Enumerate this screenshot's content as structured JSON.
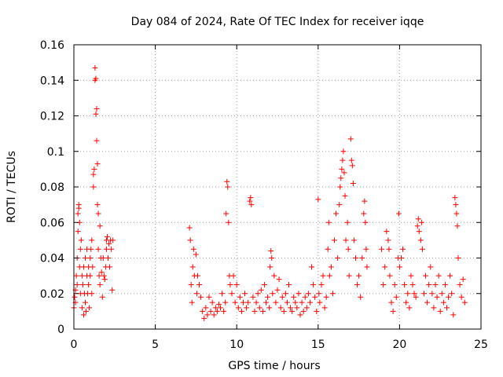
{
  "chart_data": {
    "type": "scatter",
    "title": "Day 084 of 2024, Rate Of TEC Index for receiver iqqe",
    "xlabel": "GPS time / hours",
    "ylabel": "ROTI / TECUs",
    "xlim": [
      0,
      25
    ],
    "ylim": [
      0,
      0.16
    ],
    "grid": true,
    "marker": "plus",
    "color": "#ff0000",
    "x_ticks": [
      {
        "value": 0,
        "label": "0"
      },
      {
        "value": 5,
        "label": "5"
      },
      {
        "value": 10,
        "label": "10"
      },
      {
        "value": 15,
        "label": "15"
      },
      {
        "value": 20,
        "label": "20"
      },
      {
        "value": 25,
        "label": "25"
      }
    ],
    "y_ticks": [
      {
        "value": 0,
        "label": "0"
      },
      {
        "value": 0.02,
        "label": "0.02"
      },
      {
        "value": 0.04,
        "label": "0.04"
      },
      {
        "value": 0.06,
        "label": "0.06"
      },
      {
        "value": 0.08,
        "label": "0.08"
      },
      {
        "value": 0.1,
        "label": "0.1"
      },
      {
        "value": 0.12,
        "label": "0.12"
      },
      {
        "value": 0.14,
        "label": "0.14"
      },
      {
        "value": 0.16,
        "label": "0.16"
      }
    ],
    "series": [
      {
        "name": "ROTI",
        "points": [
          [
            0.0,
            0.012
          ],
          [
            0.05,
            0.018
          ],
          [
            0.1,
            0.022
          ],
          [
            0.1,
            0.015
          ],
          [
            0.15,
            0.03
          ],
          [
            0.2,
            0.025
          ],
          [
            0.2,
            0.04
          ],
          [
            0.25,
            0.055
          ],
          [
            0.25,
            0.065
          ],
          [
            0.3,
            0.07
          ],
          [
            0.3,
            0.068
          ],
          [
            0.35,
            0.06
          ],
          [
            0.35,
            0.035
          ],
          [
            0.4,
            0.045
          ],
          [
            0.4,
            0.02
          ],
          [
            0.45,
            0.05
          ],
          [
            0.5,
            0.03
          ],
          [
            0.5,
            0.012
          ],
          [
            0.55,
            0.025
          ],
          [
            0.6,
            0.035
          ],
          [
            0.6,
            0.008
          ],
          [
            0.65,
            0.02
          ],
          [
            0.7,
            0.04
          ],
          [
            0.7,
            0.015
          ],
          [
            0.75,
            0.01
          ],
          [
            0.8,
            0.03
          ],
          [
            0.8,
            0.045
          ],
          [
            0.85,
            0.02
          ],
          [
            0.9,
            0.035
          ],
          [
            0.9,
            0.025
          ],
          [
            0.95,
            0.012
          ],
          [
            1.0,
            0.04
          ],
          [
            1.0,
            0.03
          ],
          [
            1.05,
            0.045
          ],
          [
            1.1,
            0.02
          ],
          [
            1.1,
            0.05
          ],
          [
            1.15,
            0.035
          ],
          [
            1.2,
            0.08
          ],
          [
            1.2,
            0.087
          ],
          [
            1.25,
            0.09
          ],
          [
            1.3,
            0.147
          ],
          [
            1.3,
            0.14
          ],
          [
            1.35,
            0.141
          ],
          [
            1.35,
            0.121
          ],
          [
            1.4,
            0.124
          ],
          [
            1.4,
            0.106
          ],
          [
            1.45,
            0.093
          ],
          [
            1.45,
            0.07
          ],
          [
            1.5,
            0.065
          ],
          [
            1.5,
            0.045
          ],
          [
            1.55,
            0.03
          ],
          [
            1.6,
            0.058
          ],
          [
            1.6,
            0.025
          ],
          [
            1.65,
            0.04
          ],
          [
            1.7,
            0.032
          ],
          [
            1.75,
            0.018
          ],
          [
            1.8,
            0.04
          ],
          [
            1.85,
            0.03
          ],
          [
            1.9,
            0.028
          ],
          [
            1.95,
            0.035
          ],
          [
            2.0,
            0.045
          ],
          [
            2.0,
            0.05
          ],
          [
            2.05,
            0.052
          ],
          [
            2.1,
            0.04
          ],
          [
            2.15,
            0.048
          ],
          [
            2.2,
            0.035
          ],
          [
            2.25,
            0.05
          ],
          [
            2.3,
            0.045
          ],
          [
            2.35,
            0.022
          ],
          [
            2.4,
            0.05
          ],
          [
            7.1,
            0.057
          ],
          [
            7.15,
            0.05
          ],
          [
            7.2,
            0.025
          ],
          [
            7.25,
            0.015
          ],
          [
            7.3,
            0.035
          ],
          [
            7.35,
            0.045
          ],
          [
            7.4,
            0.03
          ],
          [
            7.5,
            0.042
          ],
          [
            7.55,
            0.02
          ],
          [
            7.6,
            0.03
          ],
          [
            7.7,
            0.025
          ],
          [
            7.8,
            0.018
          ],
          [
            7.9,
            0.01
          ],
          [
            8.0,
            0.006
          ],
          [
            8.1,
            0.012
          ],
          [
            8.2,
            0.008
          ],
          [
            8.3,
            0.018
          ],
          [
            8.4,
            0.01
          ],
          [
            8.5,
            0.015
          ],
          [
            8.6,
            0.008
          ],
          [
            8.7,
            0.012
          ],
          [
            8.8,
            0.01
          ],
          [
            8.9,
            0.014
          ],
          [
            9.0,
            0.012
          ],
          [
            9.1,
            0.02
          ],
          [
            9.2,
            0.01
          ],
          [
            9.3,
            0.015
          ],
          [
            9.35,
            0.065
          ],
          [
            9.4,
            0.083
          ],
          [
            9.45,
            0.08
          ],
          [
            9.5,
            0.06
          ],
          [
            9.55,
            0.03
          ],
          [
            9.6,
            0.025
          ],
          [
            9.7,
            0.02
          ],
          [
            9.8,
            0.03
          ],
          [
            9.9,
            0.015
          ],
          [
            10.0,
            0.025
          ],
          [
            10.1,
            0.012
          ],
          [
            10.2,
            0.018
          ],
          [
            10.3,
            0.01
          ],
          [
            10.4,
            0.015
          ],
          [
            10.5,
            0.02
          ],
          [
            10.6,
            0.012
          ],
          [
            10.7,
            0.015
          ],
          [
            10.8,
            0.072
          ],
          [
            10.85,
            0.074
          ],
          [
            10.9,
            0.07
          ],
          [
            11.0,
            0.018
          ],
          [
            11.1,
            0.01
          ],
          [
            11.2,
            0.015
          ],
          [
            11.3,
            0.02
          ],
          [
            11.4,
            0.012
          ],
          [
            11.5,
            0.022
          ],
          [
            11.6,
            0.01
          ],
          [
            11.7,
            0.025
          ],
          [
            11.8,
            0.015
          ],
          [
            11.9,
            0.018
          ],
          [
            12.0,
            0.012
          ],
          [
            12.05,
            0.035
          ],
          [
            12.1,
            0.044
          ],
          [
            12.15,
            0.04
          ],
          [
            12.2,
            0.02
          ],
          [
            12.3,
            0.03
          ],
          [
            12.4,
            0.015
          ],
          [
            12.5,
            0.022
          ],
          [
            12.6,
            0.028
          ],
          [
            12.7,
            0.012
          ],
          [
            12.8,
            0.018
          ],
          [
            12.9,
            0.01
          ],
          [
            13.0,
            0.02
          ],
          [
            13.1,
            0.015
          ],
          [
            13.2,
            0.025
          ],
          [
            13.3,
            0.012
          ],
          [
            13.4,
            0.01
          ],
          [
            13.5,
            0.018
          ],
          [
            13.6,
            0.015
          ],
          [
            13.7,
            0.012
          ],
          [
            13.8,
            0.02
          ],
          [
            13.9,
            0.008
          ],
          [
            14.0,
            0.015
          ],
          [
            14.1,
            0.01
          ],
          [
            14.2,
            0.018
          ],
          [
            14.3,
            0.012
          ],
          [
            14.4,
            0.02
          ],
          [
            14.5,
            0.015
          ],
          [
            14.6,
            0.035
          ],
          [
            14.7,
            0.025
          ],
          [
            14.8,
            0.018
          ],
          [
            14.9,
            0.01
          ],
          [
            15.0,
            0.073
          ],
          [
            15.05,
            0.02
          ],
          [
            15.1,
            0.015
          ],
          [
            15.2,
            0.025
          ],
          [
            15.3,
            0.03
          ],
          [
            15.4,
            0.012
          ],
          [
            15.5,
            0.018
          ],
          [
            15.6,
            0.045
          ],
          [
            15.65,
            0.06
          ],
          [
            15.7,
            0.03
          ],
          [
            15.8,
            0.035
          ],
          [
            15.9,
            0.02
          ],
          [
            16.0,
            0.05
          ],
          [
            16.1,
            0.065
          ],
          [
            16.2,
            0.04
          ],
          [
            16.3,
            0.07
          ],
          [
            16.35,
            0.08
          ],
          [
            16.4,
            0.085
          ],
          [
            16.45,
            0.09
          ],
          [
            16.5,
            0.095
          ],
          [
            16.55,
            0.1
          ],
          [
            16.6,
            0.088
          ],
          [
            16.65,
            0.075
          ],
          [
            16.7,
            0.05
          ],
          [
            16.8,
            0.06
          ],
          [
            16.85,
            0.045
          ],
          [
            16.9,
            0.03
          ],
          [
            17.0,
            0.107
          ],
          [
            17.05,
            0.095
          ],
          [
            17.1,
            0.092
          ],
          [
            17.15,
            0.082
          ],
          [
            17.2,
            0.05
          ],
          [
            17.3,
            0.04
          ],
          [
            17.4,
            0.025
          ],
          [
            17.5,
            0.03
          ],
          [
            17.6,
            0.018
          ],
          [
            17.7,
            0.04
          ],
          [
            17.8,
            0.065
          ],
          [
            17.85,
            0.072
          ],
          [
            17.9,
            0.06
          ],
          [
            17.95,
            0.045
          ],
          [
            18.0,
            0.035
          ],
          [
            18.9,
            0.045
          ],
          [
            19.0,
            0.025
          ],
          [
            19.1,
            0.035
          ],
          [
            19.2,
            0.055
          ],
          [
            19.3,
            0.05
          ],
          [
            19.35,
            0.045
          ],
          [
            19.4,
            0.03
          ],
          [
            19.5,
            0.015
          ],
          [
            19.6,
            0.01
          ],
          [
            19.7,
            0.025
          ],
          [
            19.8,
            0.018
          ],
          [
            19.9,
            0.04
          ],
          [
            19.95,
            0.065
          ],
          [
            20.0,
            0.035
          ],
          [
            20.1,
            0.04
          ],
          [
            20.2,
            0.045
          ],
          [
            20.3,
            0.025
          ],
          [
            20.4,
            0.015
          ],
          [
            20.5,
            0.02
          ],
          [
            20.6,
            0.012
          ],
          [
            20.7,
            0.03
          ],
          [
            20.8,
            0.025
          ],
          [
            20.9,
            0.02
          ],
          [
            21.0,
            0.018
          ],
          [
            21.1,
            0.058
          ],
          [
            21.15,
            0.062
          ],
          [
            21.2,
            0.055
          ],
          [
            21.3,
            0.05
          ],
          [
            21.35,
            0.06
          ],
          [
            21.4,
            0.045
          ],
          [
            21.5,
            0.02
          ],
          [
            21.6,
            0.03
          ],
          [
            21.7,
            0.015
          ],
          [
            21.8,
            0.025
          ],
          [
            21.9,
            0.035
          ],
          [
            22.0,
            0.02
          ],
          [
            22.1,
            0.012
          ],
          [
            22.2,
            0.025
          ],
          [
            22.3,
            0.018
          ],
          [
            22.4,
            0.03
          ],
          [
            22.5,
            0.01
          ],
          [
            22.6,
            0.02
          ],
          [
            22.7,
            0.015
          ],
          [
            22.8,
            0.025
          ],
          [
            22.9,
            0.012
          ],
          [
            23.0,
            0.018
          ],
          [
            23.1,
            0.03
          ],
          [
            23.2,
            0.02
          ],
          [
            23.3,
            0.008
          ],
          [
            23.4,
            0.074
          ],
          [
            23.45,
            0.07
          ],
          [
            23.5,
            0.065
          ],
          [
            23.55,
            0.058
          ],
          [
            23.6,
            0.04
          ],
          [
            23.7,
            0.025
          ],
          [
            23.8,
            0.018
          ],
          [
            23.9,
            0.028
          ],
          [
            24.0,
            0.015
          ]
        ]
      }
    ]
  }
}
